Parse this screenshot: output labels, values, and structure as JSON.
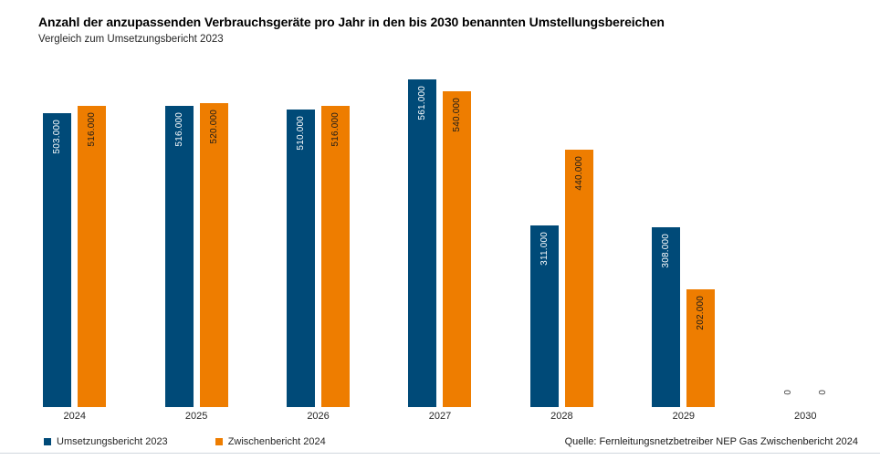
{
  "header": {
    "title": "Anzahl der anzupassenden Verbrauchsgeräte pro Jahr in den bis 2030 benannten Umstellungsbereichen",
    "subtitle": "Vergleich zum Umsetzungsbericht 2023"
  },
  "footer": {
    "source": "Quelle: Fernleitungsnetzbetreiber NEP Gas Zwischenbericht 2024"
  },
  "legend": {
    "items": [
      {
        "label": "Umsetzungsbericht 2023",
        "color": "#004A78"
      },
      {
        "label": "Zwischenbericht 2024",
        "color": "#EE7D00"
      }
    ]
  },
  "chart_data": {
    "type": "bar",
    "title": "Anzahl der anzupassenden Verbrauchsgeräte pro Jahr in den bis 2030 benannten Umstellungsbereichen",
    "subtitle": "Vergleich zum Umsetzungsbericht 2023",
    "categories": [
      "2024",
      "2025",
      "2026",
      "2027",
      "2028",
      "2029",
      "2030"
    ],
    "series": [
      {
        "name": "Umsetzungsbericht 2023",
        "color": "#004A78",
        "label_color": "#FFFFFF",
        "values": [
          503000,
          516000,
          510000,
          561000,
          311000,
          308000,
          0
        ],
        "labels": [
          "503.000",
          "516.000",
          "510.000",
          "561.000",
          "311.000",
          "308.000",
          "0"
        ]
      },
      {
        "name": "Zwischenbericht 2024",
        "color": "#EE7D00",
        "label_color": "#1A1A1A",
        "values": [
          516000,
          520000,
          516000,
          540000,
          440000,
          202000,
          0
        ],
        "labels": [
          "516.000",
          "520.000",
          "516.000",
          "540.000",
          "440.000",
          "202.000",
          "0"
        ]
      }
    ],
    "xlabel": "",
    "ylabel": "",
    "ylim": [
      0,
      561000
    ],
    "grid": false,
    "value_labels": "rotated-90-inside-top",
    "legend_position": "bottom-left"
  }
}
